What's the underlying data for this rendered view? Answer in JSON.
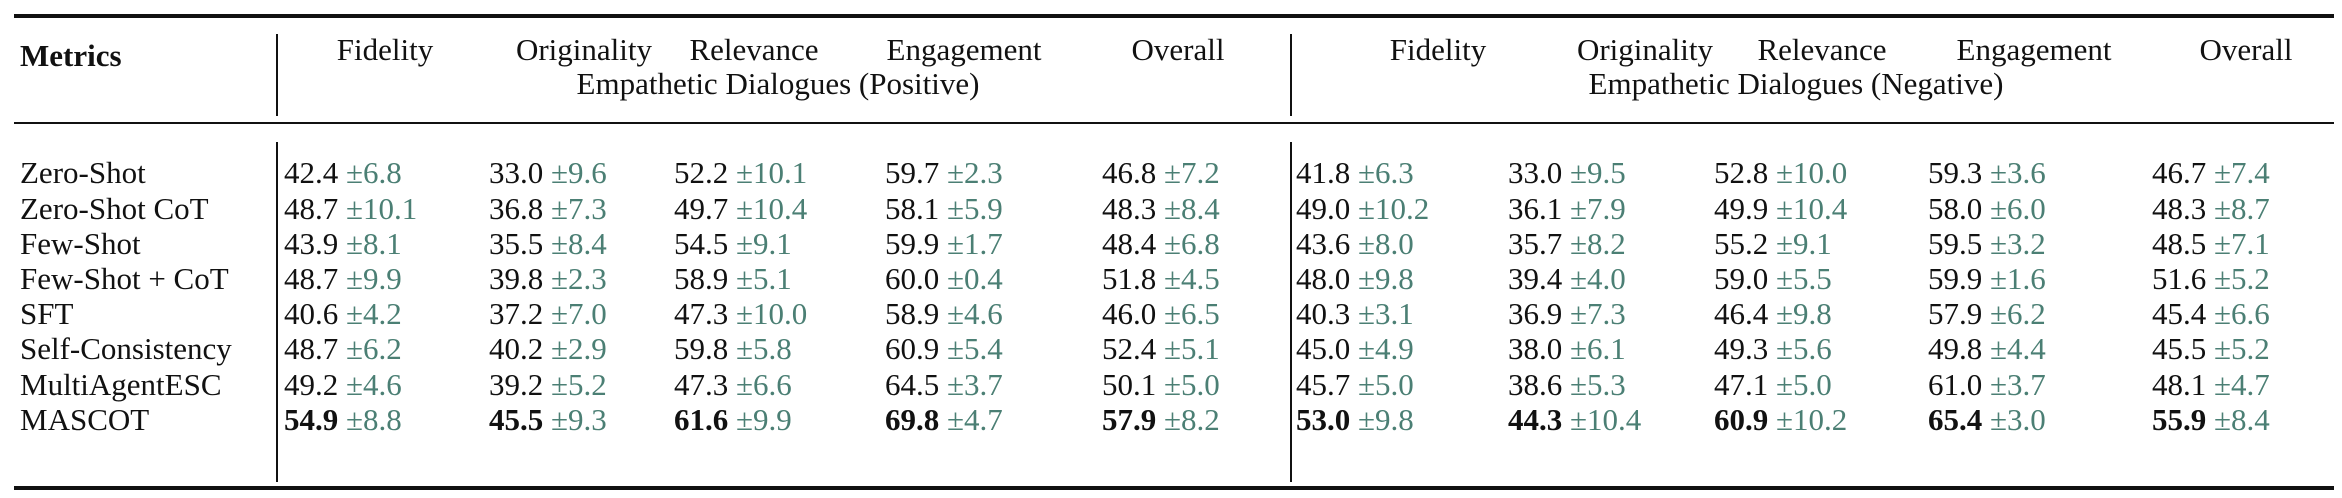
{
  "table": {
    "corner_label": "Metrics",
    "columns": [
      "Fidelity",
      "Originality",
      "Relevance",
      "Engagement",
      "Overall"
    ],
    "groups": [
      "Empathetic Dialogues (Positive)",
      "Empathetic Dialogues (Negative)"
    ],
    "std_color": "#4b7f74",
    "rows": [
      {
        "label": "Zero-Shot",
        "bold": false,
        "positive": [
          [
            "42.4",
            "±6.8"
          ],
          [
            "33.0",
            "±9.6"
          ],
          [
            "52.2",
            "±10.1"
          ],
          [
            "59.7",
            "±2.3"
          ],
          [
            "46.8",
            "±7.2"
          ]
        ],
        "negative": [
          [
            "41.8",
            "±6.3"
          ],
          [
            "33.0",
            "±9.5"
          ],
          [
            "52.8",
            "±10.0"
          ],
          [
            "59.3",
            "±3.6"
          ],
          [
            "46.7",
            "±7.4"
          ]
        ]
      },
      {
        "label": "Zero-Shot CoT",
        "bold": false,
        "positive": [
          [
            "48.7",
            "±10.1"
          ],
          [
            "36.8",
            "±7.3"
          ],
          [
            "49.7",
            "±10.4"
          ],
          [
            "58.1",
            "±5.9"
          ],
          [
            "48.3",
            "±8.4"
          ]
        ],
        "negative": [
          [
            "49.0",
            "±10.2"
          ],
          [
            "36.1",
            "±7.9"
          ],
          [
            "49.9",
            "±10.4"
          ],
          [
            "58.0",
            "±6.0"
          ],
          [
            "48.3",
            "±8.7"
          ]
        ]
      },
      {
        "label": "Few-Shot",
        "bold": false,
        "positive": [
          [
            "43.9",
            "±8.1"
          ],
          [
            "35.5",
            "±8.4"
          ],
          [
            "54.5",
            "±9.1"
          ],
          [
            "59.9",
            "±1.7"
          ],
          [
            "48.4",
            "±6.8"
          ]
        ],
        "negative": [
          [
            "43.6",
            "±8.0"
          ],
          [
            "35.7",
            "±8.2"
          ],
          [
            "55.2",
            "±9.1"
          ],
          [
            "59.5",
            "±3.2"
          ],
          [
            "48.5",
            "±7.1"
          ]
        ]
      },
      {
        "label": "Few-Shot + CoT",
        "bold": false,
        "positive": [
          [
            "48.7",
            "±9.9"
          ],
          [
            "39.8",
            "±2.3"
          ],
          [
            "58.9",
            "±5.1"
          ],
          [
            "60.0",
            "±0.4"
          ],
          [
            "51.8",
            "±4.5"
          ]
        ],
        "negative": [
          [
            "48.0",
            "±9.8"
          ],
          [
            "39.4",
            "±4.0"
          ],
          [
            "59.0",
            "±5.5"
          ],
          [
            "59.9",
            "±1.6"
          ],
          [
            "51.6",
            "±5.2"
          ]
        ]
      },
      {
        "label": "SFT",
        "bold": false,
        "positive": [
          [
            "40.6",
            "±4.2"
          ],
          [
            "37.2",
            "±7.0"
          ],
          [
            "47.3",
            "±10.0"
          ],
          [
            "58.9",
            "±4.6"
          ],
          [
            "46.0",
            "±6.5"
          ]
        ],
        "negative": [
          [
            "40.3",
            "±3.1"
          ],
          [
            "36.9",
            "±7.3"
          ],
          [
            "46.4",
            "±9.8"
          ],
          [
            "57.9",
            "±6.2"
          ],
          [
            "45.4",
            "±6.6"
          ]
        ]
      },
      {
        "label": "Self-Consistency",
        "bold": false,
        "positive": [
          [
            "48.7",
            "±6.2"
          ],
          [
            "40.2",
            "±2.9"
          ],
          [
            "59.8",
            "±5.8"
          ],
          [
            "60.9",
            "±5.4"
          ],
          [
            "52.4",
            "±5.1"
          ]
        ],
        "negative": [
          [
            "45.0",
            "±4.9"
          ],
          [
            "38.0",
            "±6.1"
          ],
          [
            "49.3",
            "±5.6"
          ],
          [
            "49.8",
            "±4.4"
          ],
          [
            "45.5",
            "±5.2"
          ]
        ]
      },
      {
        "label": "MultiAgentESC",
        "bold": false,
        "positive": [
          [
            "49.2",
            "±4.6"
          ],
          [
            "39.2",
            "±5.2"
          ],
          [
            "47.3",
            "±6.6"
          ],
          [
            "64.5",
            "±3.7"
          ],
          [
            "50.1",
            "±5.0"
          ]
        ],
        "negative": [
          [
            "45.7",
            "±5.0"
          ],
          [
            "38.6",
            "±5.3"
          ],
          [
            "47.1",
            "±5.0"
          ],
          [
            "61.0",
            "±3.7"
          ],
          [
            "48.1",
            "±4.7"
          ]
        ]
      },
      {
        "label": "MASCOT",
        "bold": true,
        "positive": [
          [
            "54.9",
            "±8.8"
          ],
          [
            "45.5",
            "±9.3"
          ],
          [
            "61.6",
            "±9.9"
          ],
          [
            "69.8",
            "±4.7"
          ],
          [
            "57.9",
            "±8.2"
          ]
        ],
        "negative": [
          [
            "53.0",
            "±9.8"
          ],
          [
            "44.3",
            "±10.4"
          ],
          [
            "60.9",
            "±10.2"
          ],
          [
            "65.4",
            "±3.0"
          ],
          [
            "55.9",
            "±8.4"
          ]
        ]
      }
    ]
  }
}
